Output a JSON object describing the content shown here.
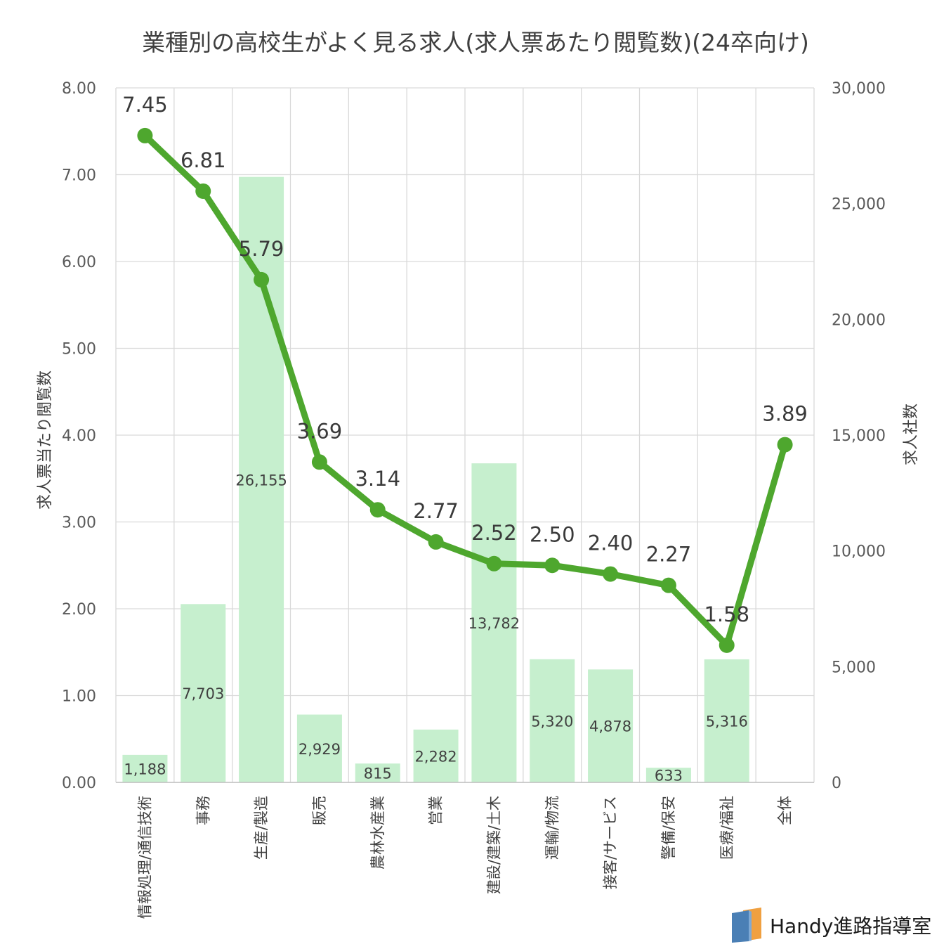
{
  "chart_data": {
    "type": "bar+line",
    "title": "業種別の高校生がよく見る求人(求人票あたり閲覧数)(24卒向け)",
    "ylabel": "求人票当たり閲覧数",
    "y2label": "求人社数",
    "ylim": [
      0,
      8
    ],
    "y2lim": [
      0,
      30000
    ],
    "yticks": [
      "0.00",
      "1.00",
      "2.00",
      "3.00",
      "4.00",
      "5.00",
      "6.00",
      "7.00",
      "8.00"
    ],
    "y2ticks": [
      "0",
      "5,000",
      "10,000",
      "15,000",
      "20,000",
      "25,000",
      "30,000"
    ],
    "grid": true,
    "categories": [
      "情報処理/通信技術",
      "事務",
      "生産/製造",
      "販売",
      "農林水産業",
      "営業",
      "建設/建築/土木",
      "運輸/物流",
      "接客/サービス",
      "警備/保安",
      "医療/福祉",
      "全体"
    ],
    "bars": {
      "axis": "right",
      "color": "#c6efce",
      "values": [
        1188,
        7703,
        26155,
        2929,
        815,
        2282,
        13782,
        5320,
        4878,
        633,
        5316,
        null
      ],
      "labels": [
        "1,188",
        "7,703",
        "26,155",
        "2,929",
        "815",
        "2,282",
        "13,782",
        "5,320",
        "4,878",
        "633",
        "5,316",
        ""
      ]
    },
    "line": {
      "axis": "left",
      "color": "#4ea72e",
      "values": [
        7.45,
        6.81,
        5.79,
        3.69,
        3.14,
        2.77,
        2.52,
        2.5,
        2.4,
        2.27,
        1.58,
        3.89
      ],
      "labels": [
        "7.45",
        "6.81",
        "5.79",
        "3.69",
        "3.14",
        "2.77",
        "2.52",
        "2.50",
        "2.40",
        "2.27",
        "1.58",
        "3.89"
      ]
    }
  },
  "brand": {
    "name": "Handy進路指導室",
    "colors": [
      "#4a7fb5",
      "#f0a040"
    ]
  }
}
